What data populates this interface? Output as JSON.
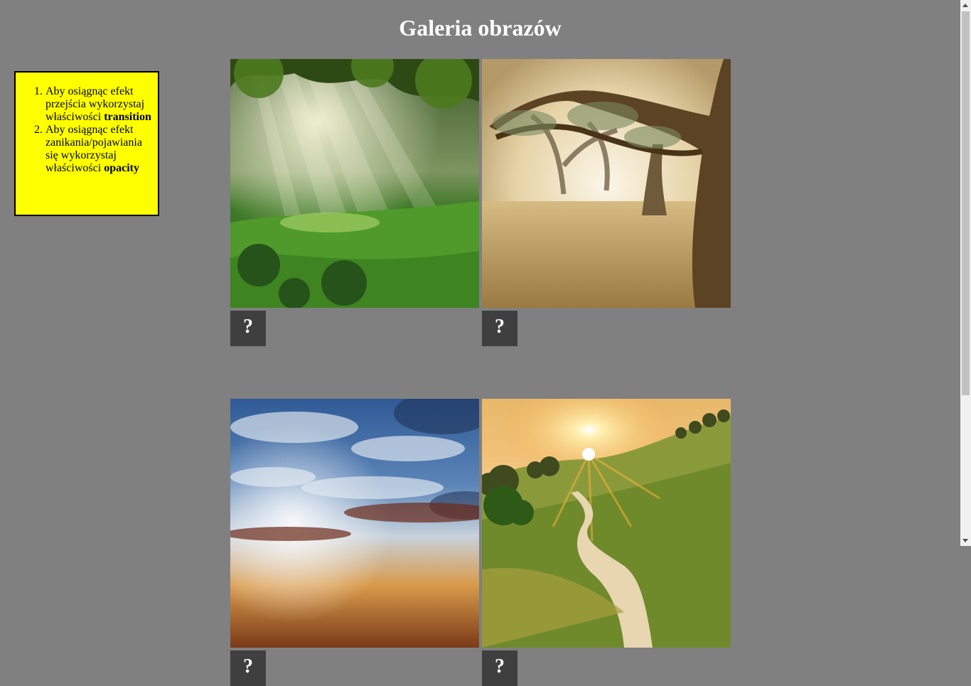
{
  "page": {
    "title": "Galeria obrazów"
  },
  "instructions": {
    "items": [
      {
        "text": "Aby osiągnąc efekt przejścia wykorzystaj właściwości ",
        "bold": "transition"
      },
      {
        "text": "Aby osiągnąc efekt zanikania/pojawiania się wykorzystaj właściwości ",
        "bold": "opacity"
      }
    ]
  },
  "gallery": {
    "images": [
      {
        "name": "forest-sunbeams",
        "button_label": "?"
      },
      {
        "name": "olive-trees-fog",
        "button_label": "?"
      },
      {
        "name": "cloudy-sky-sunset",
        "button_label": "?"
      },
      {
        "name": "sunset-country-road",
        "button_label": "?"
      }
    ]
  },
  "colors": {
    "background": "#808080",
    "note_background": "#ffff00",
    "button_background": "#3f3f3f"
  }
}
